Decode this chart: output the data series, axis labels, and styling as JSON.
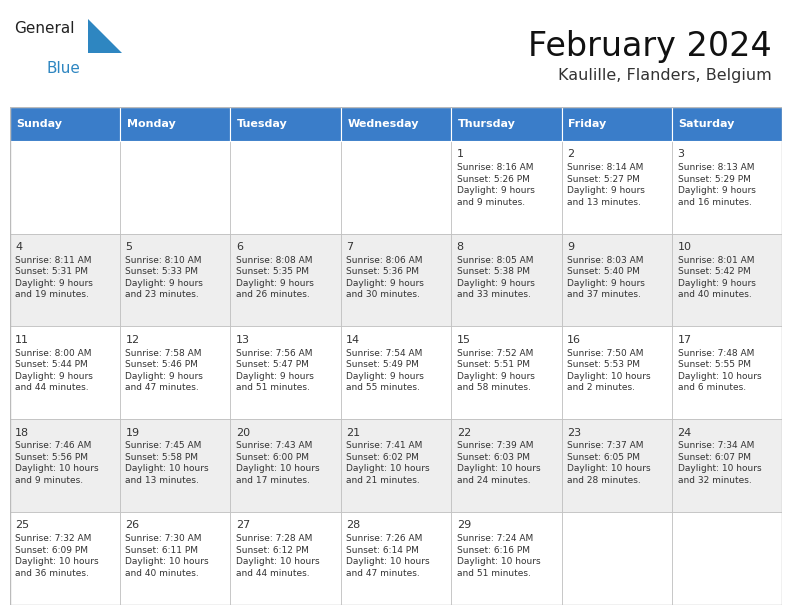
{
  "title": "February 2024",
  "subtitle": "Kaulille, Flanders, Belgium",
  "header_bg": "#3A7DC9",
  "header_text_color": "#FFFFFF",
  "header_days": [
    "Sunday",
    "Monday",
    "Tuesday",
    "Wednesday",
    "Thursday",
    "Friday",
    "Saturday"
  ],
  "row_bg_odd": "#EEEEEE",
  "row_bg_even": "#FFFFFF",
  "cell_border_color": "#BBBBBB",
  "text_color": "#333333",
  "logo_blue": "#2E86C1",
  "calendar_data": [
    [
      "",
      "",
      "",
      "",
      "1\nSunrise: 8:16 AM\nSunset: 5:26 PM\nDaylight: 9 hours\nand 9 minutes.",
      "2\nSunrise: 8:14 AM\nSunset: 5:27 PM\nDaylight: 9 hours\nand 13 minutes.",
      "3\nSunrise: 8:13 AM\nSunset: 5:29 PM\nDaylight: 9 hours\nand 16 minutes."
    ],
    [
      "4\nSunrise: 8:11 AM\nSunset: 5:31 PM\nDaylight: 9 hours\nand 19 minutes.",
      "5\nSunrise: 8:10 AM\nSunset: 5:33 PM\nDaylight: 9 hours\nand 23 minutes.",
      "6\nSunrise: 8:08 AM\nSunset: 5:35 PM\nDaylight: 9 hours\nand 26 minutes.",
      "7\nSunrise: 8:06 AM\nSunset: 5:36 PM\nDaylight: 9 hours\nand 30 minutes.",
      "8\nSunrise: 8:05 AM\nSunset: 5:38 PM\nDaylight: 9 hours\nand 33 minutes.",
      "9\nSunrise: 8:03 AM\nSunset: 5:40 PM\nDaylight: 9 hours\nand 37 minutes.",
      "10\nSunrise: 8:01 AM\nSunset: 5:42 PM\nDaylight: 9 hours\nand 40 minutes."
    ],
    [
      "11\nSunrise: 8:00 AM\nSunset: 5:44 PM\nDaylight: 9 hours\nand 44 minutes.",
      "12\nSunrise: 7:58 AM\nSunset: 5:46 PM\nDaylight: 9 hours\nand 47 minutes.",
      "13\nSunrise: 7:56 AM\nSunset: 5:47 PM\nDaylight: 9 hours\nand 51 minutes.",
      "14\nSunrise: 7:54 AM\nSunset: 5:49 PM\nDaylight: 9 hours\nand 55 minutes.",
      "15\nSunrise: 7:52 AM\nSunset: 5:51 PM\nDaylight: 9 hours\nand 58 minutes.",
      "16\nSunrise: 7:50 AM\nSunset: 5:53 PM\nDaylight: 10 hours\nand 2 minutes.",
      "17\nSunrise: 7:48 AM\nSunset: 5:55 PM\nDaylight: 10 hours\nand 6 minutes."
    ],
    [
      "18\nSunrise: 7:46 AM\nSunset: 5:56 PM\nDaylight: 10 hours\nand 9 minutes.",
      "19\nSunrise: 7:45 AM\nSunset: 5:58 PM\nDaylight: 10 hours\nand 13 minutes.",
      "20\nSunrise: 7:43 AM\nSunset: 6:00 PM\nDaylight: 10 hours\nand 17 minutes.",
      "21\nSunrise: 7:41 AM\nSunset: 6:02 PM\nDaylight: 10 hours\nand 21 minutes.",
      "22\nSunrise: 7:39 AM\nSunset: 6:03 PM\nDaylight: 10 hours\nand 24 minutes.",
      "23\nSunrise: 7:37 AM\nSunset: 6:05 PM\nDaylight: 10 hours\nand 28 minutes.",
      "24\nSunrise: 7:34 AM\nSunset: 6:07 PM\nDaylight: 10 hours\nand 32 minutes."
    ],
    [
      "25\nSunrise: 7:32 AM\nSunset: 6:09 PM\nDaylight: 10 hours\nand 36 minutes.",
      "26\nSunrise: 7:30 AM\nSunset: 6:11 PM\nDaylight: 10 hours\nand 40 minutes.",
      "27\nSunrise: 7:28 AM\nSunset: 6:12 PM\nDaylight: 10 hours\nand 44 minutes.",
      "28\nSunrise: 7:26 AM\nSunset: 6:14 PM\nDaylight: 10 hours\nand 47 minutes.",
      "29\nSunrise: 7:24 AM\nSunset: 6:16 PM\nDaylight: 10 hours\nand 51 minutes.",
      "",
      ""
    ]
  ]
}
